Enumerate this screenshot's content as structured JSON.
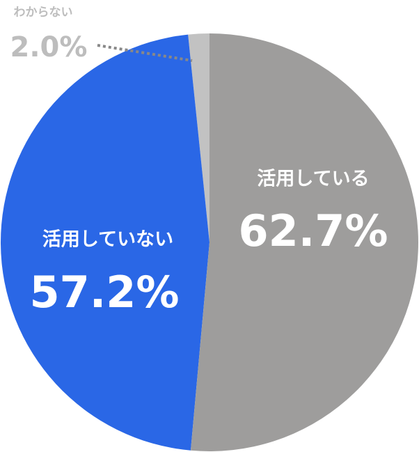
{
  "chart_data": {
    "type": "pie",
    "categories": [
      "活用している",
      "活用していない",
      "わからない"
    ],
    "values": [
      62.7,
      57.2,
      2.0
    ],
    "value_labels": [
      "62.7%",
      "57.2%",
      "2.0%"
    ],
    "colors": [
      "#9e9d9c",
      "#2a67e6",
      "#c2c2c2"
    ]
  }
}
